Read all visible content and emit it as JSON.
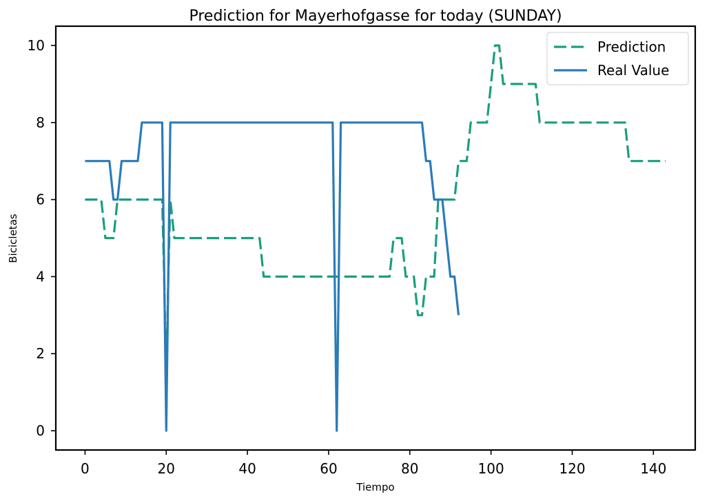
{
  "chart_data": {
    "type": "line",
    "title": "Prediction for Mayerhofgasse for today (SUNDAY)",
    "xlabel": "Tiempo",
    "ylabel": "Bicicletas",
    "xlim": [
      -7.2,
      150.3
    ],
    "ylim": [
      -0.5,
      10.5
    ],
    "xticks": [
      0,
      20,
      40,
      60,
      80,
      100,
      120,
      140
    ],
    "yticks": [
      0,
      2,
      4,
      6,
      8,
      10
    ],
    "grid": false,
    "legend": "top-right",
    "series": [
      {
        "name": "Prediction",
        "color": "#1a9e7f",
        "dash": true,
        "points": [
          [
            0,
            6
          ],
          [
            4,
            6
          ],
          [
            5,
            5
          ],
          [
            7,
            5
          ],
          [
            8,
            6
          ],
          [
            19,
            6
          ],
          [
            19.5,
            4
          ],
          [
            20,
            1
          ],
          [
            20.5,
            4
          ],
          [
            21,
            6
          ],
          [
            22,
            5
          ],
          [
            43,
            5
          ],
          [
            44,
            4
          ],
          [
            75,
            4
          ],
          [
            76,
            5
          ],
          [
            78,
            5
          ],
          [
            79,
            4
          ],
          [
            81,
            4
          ],
          [
            82,
            3
          ],
          [
            83,
            3
          ],
          [
            84,
            4
          ],
          [
            86,
            4
          ],
          [
            87,
            6
          ],
          [
            91,
            6
          ],
          [
            92,
            7
          ],
          [
            94,
            7
          ],
          [
            95,
            8
          ],
          [
            99,
            8
          ],
          [
            101,
            10
          ],
          [
            102,
            10
          ],
          [
            103,
            9
          ],
          [
            111,
            9
          ],
          [
            112,
            8
          ],
          [
            133,
            8
          ],
          [
            134,
            7
          ],
          [
            143,
            7
          ]
        ]
      },
      {
        "name": "Real Value",
        "color": "#2b7bb9",
        "dash": false,
        "points": [
          [
            0,
            7
          ],
          [
            6,
            7
          ],
          [
            7,
            6
          ],
          [
            8,
            6
          ],
          [
            9,
            7
          ],
          [
            13,
            7
          ],
          [
            14,
            8
          ],
          [
            19,
            8
          ],
          [
            20,
            0
          ],
          [
            21,
            8
          ],
          [
            61,
            8
          ],
          [
            62,
            0
          ],
          [
            63,
            8
          ],
          [
            83,
            8
          ],
          [
            84,
            7
          ],
          [
            85,
            7
          ],
          [
            86,
            6
          ],
          [
            88,
            6
          ],
          [
            90,
            4
          ],
          [
            91,
            4
          ],
          [
            92,
            3
          ]
        ]
      }
    ]
  }
}
